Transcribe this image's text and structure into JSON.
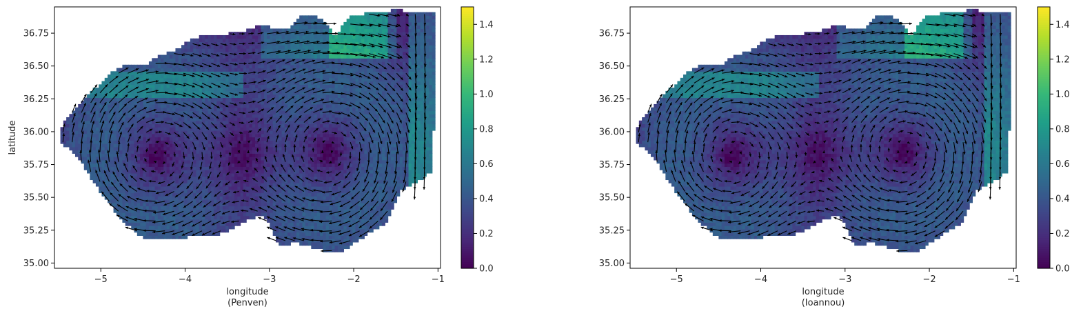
{
  "chart_data": [
    {
      "type": "heatmap",
      "panel": "left",
      "xlabel": "longitude\n(Penven)",
      "ylabel": "latitude",
      "xlim": [
        -5.55,
        -0.97
      ],
      "ylim": [
        34.96,
        36.95
      ],
      "xticks": [
        -5,
        -4,
        -3,
        -2,
        -1
      ],
      "yticks": [
        35.0,
        35.25,
        35.5,
        35.75,
        36.0,
        36.25,
        36.5,
        36.75
      ],
      "colorbar": {
        "min": 0.0,
        "max": 1.5,
        "ticks": [
          0.0,
          0.2,
          0.4,
          0.6,
          0.8,
          1.0,
          1.2,
          1.4
        ],
        "colormap": "viridis"
      },
      "overlay": "quiver (velocity vectors)",
      "features": [
        {
          "name": "western gyre",
          "center_lon": -4.35,
          "center_lat": 35.82,
          "rotation": "clockwise"
        },
        {
          "name": "eastern gyre",
          "center_lon": -2.28,
          "center_lat": 35.85,
          "rotation": "clockwise"
        }
      ]
    },
    {
      "type": "heatmap",
      "panel": "right",
      "xlabel": "longitude\n(Ioannou)",
      "ylabel": "",
      "xlim": [
        -5.55,
        -0.97
      ],
      "ylim": [
        34.96,
        36.95
      ],
      "xticks": [
        -5,
        -4,
        -3,
        -2,
        -1
      ],
      "yticks": [
        35.0,
        35.25,
        35.5,
        35.75,
        36.0,
        36.25,
        36.5,
        36.75
      ],
      "colorbar": {
        "min": 0.0,
        "max": 1.5,
        "ticks": [
          0.0,
          0.2,
          0.4,
          0.6,
          0.8,
          1.0,
          1.2,
          1.4
        ],
        "colormap": "viridis"
      },
      "overlay": "quiver (velocity vectors)",
      "features": [
        {
          "name": "western gyre",
          "center_lon": -4.35,
          "center_lat": 35.82,
          "rotation": "clockwise"
        },
        {
          "name": "eastern gyre",
          "center_lon": -2.28,
          "center_lat": 35.85,
          "rotation": "clockwise"
        }
      ]
    }
  ],
  "colors": {
    "viridis": [
      "#440154",
      "#482878",
      "#3e4989",
      "#31688e",
      "#26828e",
      "#1f9e89",
      "#35b779",
      "#6ece58",
      "#b5de2b",
      "#fde725"
    ],
    "background": "#ffffff",
    "axes": "#000000",
    "arrows": "#000000"
  }
}
